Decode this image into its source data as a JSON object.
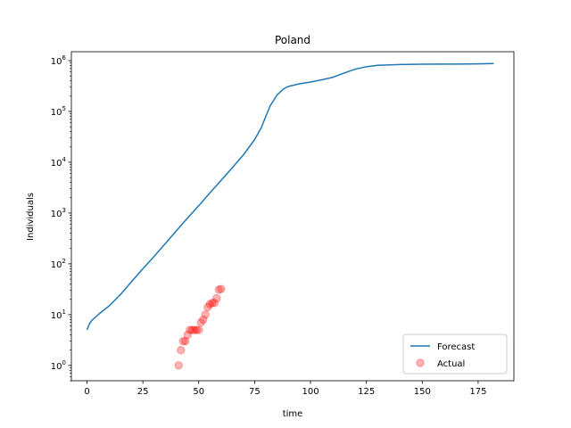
{
  "chart_data": {
    "type": "line",
    "title": "Poland",
    "xlabel": "time",
    "ylabel": "Individuals",
    "xlim": [
      -7,
      191
    ],
    "ylim": [
      0.5,
      1500000
    ],
    "yscale": "log",
    "xticks": [
      0,
      25,
      50,
      75,
      100,
      125,
      150,
      175
    ],
    "yticks": [
      {
        "value": 1,
        "base": "10",
        "exp": "0"
      },
      {
        "value": 10,
        "base": "10",
        "exp": "1"
      },
      {
        "value": 100,
        "base": "10",
        "exp": "2"
      },
      {
        "value": 1000,
        "base": "10",
        "exp": "3"
      },
      {
        "value": 10000,
        "base": "10",
        "exp": "4"
      },
      {
        "value": 100000,
        "base": "10",
        "exp": "5"
      },
      {
        "value": 1000000,
        "base": "10",
        "exp": "6"
      }
    ],
    "grid": false,
    "legend_position": "lower-right",
    "series": [
      {
        "name": "Forecast",
        "kind": "line",
        "color": "#1f77b4",
        "x": [
          0,
          1,
          2,
          5,
          10,
          15,
          20,
          25,
          30,
          35,
          40,
          45,
          50,
          55,
          60,
          65,
          70,
          75,
          78,
          80,
          82,
          85,
          88,
          90,
          95,
          100,
          105,
          110,
          115,
          120,
          125,
          130,
          140,
          150,
          160,
          170,
          175,
          182
        ],
        "y": [
          5,
          6.5,
          7.6,
          10,
          15,
          25,
          45,
          80,
          140,
          250,
          450,
          800,
          1400,
          2500,
          4400,
          7800,
          14000,
          28000,
          48000,
          80000,
          130000,
          210000,
          280000,
          310000,
          350000,
          380000,
          420000,
          470000,
          570000,
          680000,
          760000,
          810000,
          840000,
          850000,
          855000,
          860000,
          865000,
          880000
        ]
      },
      {
        "name": "Actual",
        "kind": "scatter",
        "color": "#ff0000",
        "opacity": 0.3,
        "x": [
          41,
          42,
          43,
          44,
          45,
          46,
          47,
          48,
          49,
          50,
          51,
          52,
          53,
          54,
          55,
          56,
          57,
          58,
          59,
          60
        ],
        "y": [
          1,
          2,
          3,
          3,
          4,
          5,
          5,
          5,
          5,
          5,
          7,
          8,
          10,
          14,
          16,
          17,
          17,
          21,
          31,
          32
        ]
      }
    ]
  }
}
